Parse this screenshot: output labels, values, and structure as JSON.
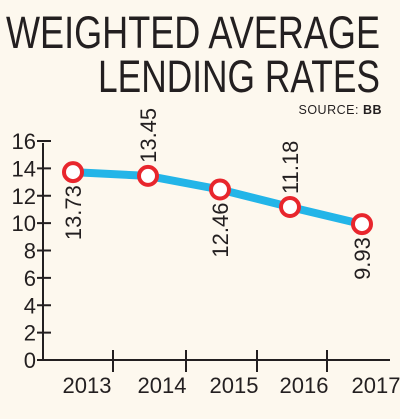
{
  "chart_data": {
    "type": "line",
    "title_line1": "WEIGHTED AVERAGE",
    "title_line2": "LENDING RATES",
    "source_prefix": "SOURCE: ",
    "source_name": "BB",
    "xlabel": "",
    "ylabel": "",
    "categories": [
      "2013",
      "2014",
      "2015",
      "2016",
      "2017"
    ],
    "values": [
      13.73,
      13.45,
      12.46,
      11.18,
      9.93
    ],
    "data_labels": [
      "13.73",
      "13.45",
      "12.46",
      "11.18",
      "9.93"
    ],
    "y_ticks": [
      "0",
      "2",
      "4",
      "6",
      "8",
      "10",
      "12",
      "14",
      "16"
    ],
    "ylim": [
      0,
      16
    ],
    "grid": false,
    "legend": "none",
    "colors": {
      "line": "#23b5e8",
      "marker": "#e8262d",
      "text": "#231f20",
      "background": "#fdf8ee"
    }
  }
}
